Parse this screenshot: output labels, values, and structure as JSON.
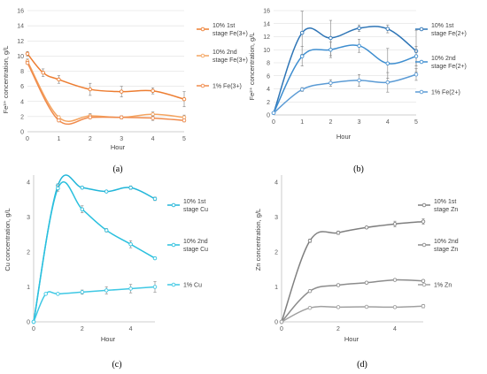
{
  "chart_data": [
    {
      "id": "a",
      "type": "line",
      "caption": "(a)",
      "xlabel": "Hour",
      "ylabel": "Fe³⁺ concentration, g/L",
      "xlim": [
        0,
        5
      ],
      "ylim": [
        0,
        16
      ],
      "yticks": [
        0,
        2,
        4,
        6,
        8,
        10,
        12,
        14,
        16
      ],
      "xticks": [
        0,
        1,
        2,
        3,
        4,
        5
      ],
      "grid": true,
      "legend_placement": "right",
      "series": [
        {
          "name": "10% 1st stage Fe(3+)",
          "color": "#ED7D31",
          "x": [
            0,
            0.5,
            1,
            2,
            3,
            4,
            5
          ],
          "y": [
            10.3,
            7.8,
            6.9,
            5.6,
            5.3,
            5.4,
            4.3
          ],
          "err": [
            0.3,
            0.5,
            0.5,
            0.8,
            0.7,
            0.4,
            1.0
          ]
        },
        {
          "name": "10% 2nd stage Fe(3+)",
          "color": "#F4A460",
          "x": [
            0,
            1,
            2,
            3,
            4,
            5
          ],
          "y": [
            9.3,
            1.9,
            2.1,
            1.9,
            2.3,
            1.9
          ],
          "err": [
            0.3,
            0.2,
            0.3,
            0.2,
            0.3,
            0.3
          ]
        },
        {
          "name": "1% Fe(3+)",
          "color": "#F08A4B",
          "x": [
            0,
            1,
            2,
            3,
            4,
            5
          ],
          "y": [
            9.1,
            1.5,
            1.9,
            1.9,
            1.8,
            1.5
          ],
          "err": [
            0.2,
            0.2,
            0.2,
            0.2,
            0.3,
            0.2
          ]
        }
      ]
    },
    {
      "id": "b",
      "type": "line",
      "caption": "(b)",
      "xlabel": "Hour",
      "ylabel": "Fe²⁺ concentration, g/L",
      "xlim": [
        0,
        5
      ],
      "ylim": [
        0,
        16
      ],
      "yticks": [
        0,
        2,
        4,
        6,
        8,
        10,
        12,
        14,
        16
      ],
      "xticks": [
        0,
        1,
        2,
        3,
        4,
        5
      ],
      "grid": true,
      "legend_placement": "right",
      "series": [
        {
          "name": "10% 1st stage Fe(2+)",
          "color": "#2E75B6",
          "x": [
            0,
            1,
            2,
            3,
            4,
            5
          ],
          "y": [
            0.3,
            12.6,
            11.8,
            13.3,
            13.2,
            9.8
          ],
          "err": [
            0.1,
            3.3,
            2.7,
            0.5,
            0.6,
            3.2
          ]
        },
        {
          "name": "10% 2nd stage Fe(2+)",
          "color": "#3E8ED0",
          "x": [
            0,
            1,
            2,
            3,
            4,
            5
          ],
          "y": [
            0.3,
            9.0,
            10.0,
            10.6,
            7.9,
            9.0
          ],
          "err": [
            0.1,
            1.5,
            1.2,
            1.0,
            2.3,
            1.5
          ]
        },
        {
          "name": "1% Fe(2+)",
          "color": "#5B9BD5",
          "x": [
            0,
            1,
            2,
            3,
            4,
            5
          ],
          "y": [
            0.3,
            3.9,
            4.9,
            5.3,
            5.0,
            6.2
          ],
          "err": [
            0.1,
            0.3,
            0.5,
            0.9,
            1.5,
            0.9
          ]
        }
      ]
    },
    {
      "id": "c",
      "type": "line",
      "caption": "(c)",
      "xlabel": "Hour",
      "ylabel": "Cu concentration, g/L",
      "xlim": [
        0,
        5
      ],
      "ylim": [
        0,
        4.2
      ],
      "yticks": [
        0,
        1,
        2,
        3,
        4
      ],
      "xticks": [
        0,
        2,
        4
      ],
      "grid": false,
      "legend_placement": "right",
      "series": [
        {
          "name": "10% 1st stage Cu",
          "color": "#22B6D9",
          "x": [
            0,
            1,
            2,
            3,
            4,
            5
          ],
          "y": [
            0,
            3.9,
            3.84,
            3.73,
            3.84,
            3.52
          ],
          "err": [
            0,
            0.05,
            0.03,
            0.03,
            0.05,
            0.05
          ]
        },
        {
          "name": "10% 2nd stage Cu",
          "color": "#2AC0DE",
          "x": [
            0,
            1,
            2,
            3,
            4,
            5
          ],
          "y": [
            0,
            3.82,
            3.22,
            2.62,
            2.22,
            1.82
          ],
          "err": [
            0,
            0.08,
            0.1,
            0.05,
            0.1,
            0.03
          ]
        },
        {
          "name": "1% Cu",
          "color": "#3FC8E4",
          "x": [
            0,
            0.5,
            1,
            2,
            3,
            4,
            5
          ],
          "y": [
            0,
            0.8,
            0.8,
            0.85,
            0.9,
            0.95,
            1.0
          ],
          "err": [
            0,
            0.02,
            0.02,
            0.06,
            0.1,
            0.12,
            0.15
          ]
        }
      ]
    },
    {
      "id": "d",
      "type": "line",
      "caption": "(d)",
      "xlabel": "Hour",
      "ylabel": "Zn concentration, g/L",
      "xlim": [
        0,
        5
      ],
      "ylim": [
        0,
        4.2
      ],
      "yticks": [
        0,
        1,
        2,
        3,
        4
      ],
      "xticks": [
        0,
        2,
        4
      ],
      "grid": false,
      "legend_placement": "right",
      "series": [
        {
          "name": "10% 1st stage Zn",
          "color": "#7F7F7F",
          "x": [
            0,
            1,
            2,
            3,
            4,
            5
          ],
          "y": [
            0,
            2.32,
            2.55,
            2.7,
            2.8,
            2.87
          ],
          "err": [
            0,
            0.05,
            0.05,
            0.03,
            0.08,
            0.08
          ]
        },
        {
          "name": "10% 2nd stage Zn",
          "color": "#8C8C8C",
          "x": [
            0,
            1,
            2,
            3,
            4,
            5
          ],
          "y": [
            0,
            0.88,
            1.05,
            1.12,
            1.2,
            1.17
          ],
          "err": [
            0,
            0.03,
            0.03,
            0.02,
            0.03,
            0.03
          ]
        },
        {
          "name": "1% Zn",
          "color": "#A0A0A0",
          "x": [
            0,
            1,
            2,
            3,
            4,
            5
          ],
          "y": [
            0,
            0.4,
            0.42,
            0.43,
            0.42,
            0.45
          ],
          "err": [
            0,
            0.02,
            0.02,
            0.02,
            0.03,
            0.05
          ]
        }
      ]
    }
  ]
}
